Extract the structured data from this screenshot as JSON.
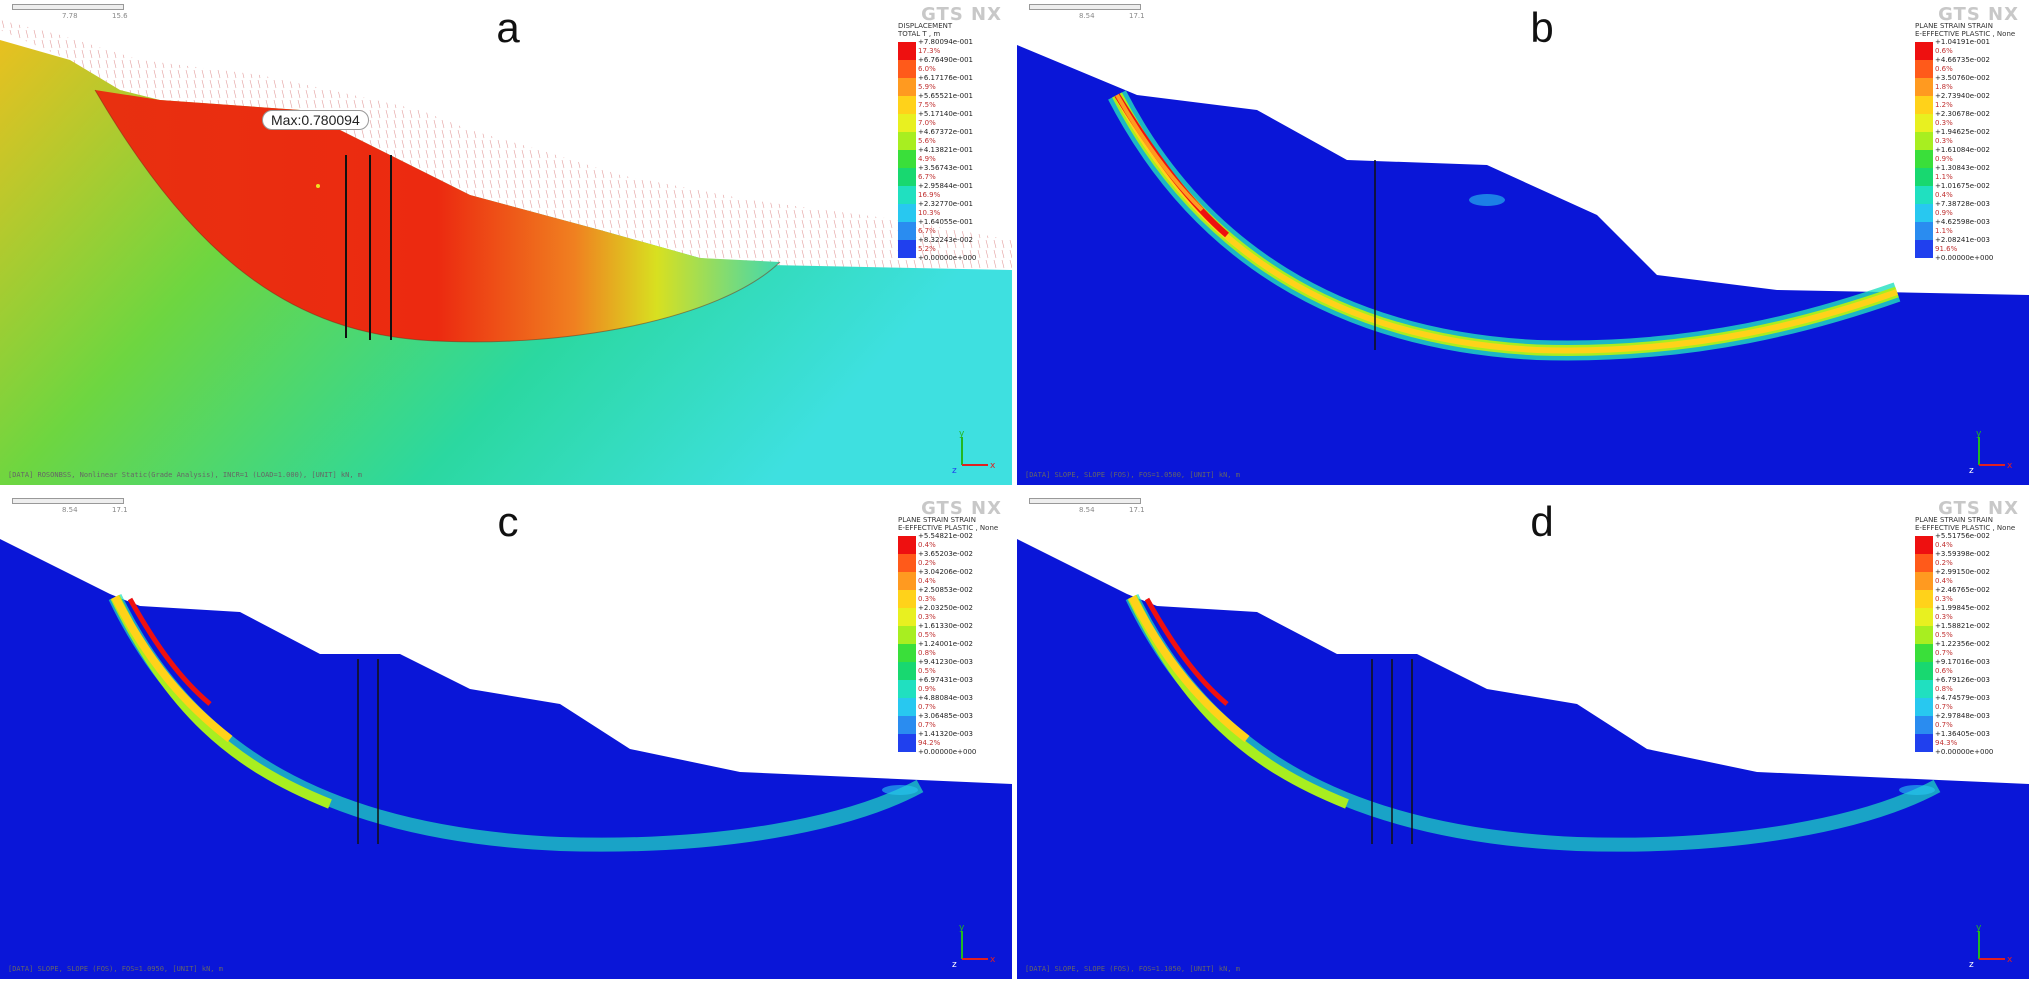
{
  "panels": [
    {
      "id": "a",
      "title": "a",
      "scale": {
        "mid": "7.78",
        "end": "15.6"
      },
      "legend_head": "DISPLACEMENT\nTOTAL T , m",
      "legend_values": [
        "+7.80094e-001",
        "+6.76490e-001",
        "+6.17176e-001",
        "+5.65521e-001",
        "+5.17140e-001",
        "+4.67372e-001",
        "+4.13821e-001",
        "+3.56743e-001",
        "+2.95844e-001",
        "+2.32770e-001",
        "+1.64055e-001",
        "+8.32243e-002",
        "+0.00000e+000"
      ],
      "legend_percents": [
        "17.3%",
        "6.0%",
        "5.9%",
        "7.5%",
        "7.0%",
        "5.6%",
        "4.9%",
        "6.7%",
        "16.9%",
        "10.3%",
        "6.7%",
        "5.2%"
      ],
      "max_label": "Max:0.780094",
      "status": "[DATA] ROSONBSS, Nonlinear Static(Grade Analysis), INCR=1 (LOAD=1.000), [UNIT] kN, m"
    },
    {
      "id": "b",
      "title": "b",
      "scale": {
        "mid": "8.54",
        "end": "17.1"
      },
      "legend_head": "PLANE STRAIN STRAIN\nE-EFFECTIVE PLASTIC , None",
      "legend_values": [
        "+1.04191e-001",
        "+4.66735e-002",
        "+3.50760e-002",
        "+2.73940e-002",
        "+2.30678e-002",
        "+1.94625e-002",
        "+1.61084e-002",
        "+1.30843e-002",
        "+1.01675e-002",
        "+7.38728e-003",
        "+4.62598e-003",
        "+2.08241e-003",
        "+0.00000e+000"
      ],
      "legend_percents": [
        "0.6%",
        "0.6%",
        "1.8%",
        "1.2%",
        "0.3%",
        "0.3%",
        "0.9%",
        "1.1%",
        "0.4%",
        "0.9%",
        "1.1%",
        "91.6%"
      ],
      "status": "[DATA] SLOPE, SLOPE (FOS), FOS=1.0500, [UNIT] kN, m"
    },
    {
      "id": "c",
      "title": "c",
      "scale": {
        "mid": "8.54",
        "end": "17.1"
      },
      "legend_head": "PLANE STRAIN STRAIN\nE-EFFECTIVE PLASTIC , None",
      "legend_values": [
        "+5.54821e-002",
        "+3.65203e-002",
        "+3.04206e-002",
        "+2.50853e-002",
        "+2.03250e-002",
        "+1.61330e-002",
        "+1.24001e-002",
        "+9.41230e-003",
        "+6.97431e-003",
        "+4.88084e-003",
        "+3.06485e-003",
        "+1.41320e-003",
        "+0.00000e+000"
      ],
      "legend_percents": [
        "0.4%",
        "0.2%",
        "0.4%",
        "0.3%",
        "0.3%",
        "0.5%",
        "0.8%",
        "0.5%",
        "0.9%",
        "0.7%",
        "0.7%",
        "94.2%"
      ],
      "status": "[DATA] SLOPE, SLOPE (FOS), FOS=1.0950, [UNIT] kN, m"
    },
    {
      "id": "d",
      "title": "d",
      "scale": {
        "mid": "8.54",
        "end": "17.1"
      },
      "legend_head": "PLANE STRAIN STRAIN\nE-EFFECTIVE PLASTIC , None",
      "legend_values": [
        "+5.51756e-002",
        "+3.59398e-002",
        "+2.99150e-002",
        "+2.46765e-002",
        "+1.99845e-002",
        "+1.58821e-002",
        "+1.22356e-002",
        "+9.17016e-003",
        "+6.79126e-003",
        "+4.74579e-003",
        "+2.97848e-003",
        "+1.36405e-003",
        "+0.00000e+000"
      ],
      "legend_percents": [
        "0.4%",
        "0.2%",
        "0.4%",
        "0.3%",
        "0.3%",
        "0.5%",
        "0.7%",
        "0.6%",
        "0.8%",
        "0.7%",
        "0.7%",
        "94.3%"
      ],
      "status": "[DATA] SLOPE, SLOPE (FOS), FOS=1.1050, [UNIT] kN, m"
    }
  ],
  "brand": "GTS NX",
  "axes": {
    "y": "y",
    "z": "z",
    "x": "x"
  },
  "colors": {
    "soil_blue": "#0a16d8",
    "strain_scale": [
      "#ee1010",
      "#ff5a1a",
      "#ff9a20",
      "#ffd21a",
      "#e8f020",
      "#a8ee20",
      "#3adf3a",
      "#18d870",
      "#20e0c0",
      "#28c8f0",
      "#2a8cf0",
      "#2040ee",
      "#0a16d8"
    ]
  }
}
